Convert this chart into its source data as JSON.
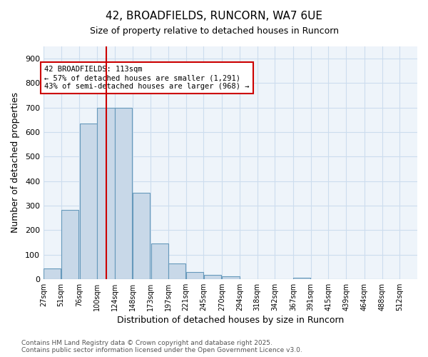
{
  "title1": "42, BROADFIELDS, RUNCORN, WA7 6UE",
  "title2": "Size of property relative to detached houses in Runcorn",
  "xlabel": "Distribution of detached houses by size in Runcorn",
  "ylabel": "Number of detached properties",
  "bar_values": [
    42,
    283,
    635,
    700,
    700,
    351,
    144,
    65,
    28,
    16,
    11,
    0,
    0,
    0,
    5,
    0,
    0,
    0,
    0,
    0
  ],
  "bin_labels": [
    "27sqm",
    "51sqm",
    "76sqm",
    "100sqm",
    "124sqm",
    "148sqm",
    "173sqm",
    "197sqm",
    "221sqm",
    "245sqm",
    "270sqm",
    "294sqm",
    "318sqm",
    "342sqm",
    "367sqm",
    "391sqm",
    "415sqm",
    "439sqm",
    "464sqm",
    "488sqm",
    "512sqm"
  ],
  "bin_edges": [
    27,
    51,
    76,
    100,
    124,
    148,
    173,
    197,
    221,
    245,
    270,
    294,
    318,
    342,
    367,
    391,
    415,
    439,
    464,
    488,
    512
  ],
  "property_line_x": 113,
  "bar_facecolor": "#c8d8e8",
  "bar_edgecolor": "#6699bb",
  "line_color": "#cc0000",
  "grid_color": "#ccddee",
  "background_color": "#eef4fa",
  "annotation_text": "42 BROADFIELDS: 113sqm\n← 57% of detached houses are smaller (1,291)\n43% of semi-detached houses are larger (968) →",
  "footnote": "Contains HM Land Registry data © Crown copyright and database right 2025.\nContains public sector information licensed under the Open Government Licence v3.0.",
  "ylim": [
    0,
    950
  ],
  "yticks": [
    0,
    100,
    200,
    300,
    400,
    500,
    600,
    700,
    800,
    900
  ]
}
